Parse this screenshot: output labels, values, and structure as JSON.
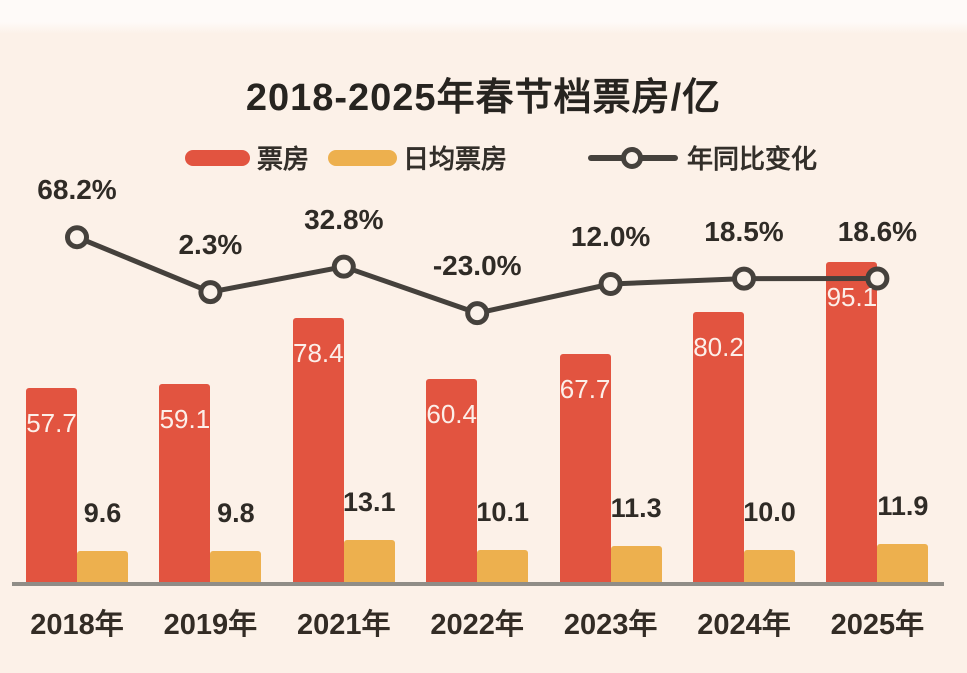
{
  "page": {
    "background_color": "#fcf1e8",
    "top_strip_color": "#fefaf8"
  },
  "title": "2018-2025年春节档票房/亿",
  "legend": [
    {
      "label": "票房",
      "type": "bar",
      "color": "#e25440"
    },
    {
      "label": "日均票房",
      "type": "bar",
      "color": "#edb04e"
    },
    {
      "label": "年同比变化",
      "type": "line",
      "color": "#45413c"
    }
  ],
  "chart_data": {
    "type": "bar",
    "subtype": "combo-bar-line",
    "title": "2018-2025年春节档票房/亿",
    "unit": "亿",
    "categories": [
      "2018年",
      "2019年",
      "2021年",
      "2022年",
      "2023年",
      "2024年",
      "2025年"
    ],
    "series": [
      {
        "name": "票房",
        "type": "bar",
        "color": "#e25440",
        "values": [
          57.7,
          59.1,
          78.4,
          60.4,
          67.7,
          80.2,
          95.1
        ],
        "labels": [
          "57.7",
          "59.1",
          "78.4",
          "60.4",
          "67.7",
          "80.2",
          "95.1"
        ]
      },
      {
        "name": "日均票房",
        "type": "bar",
        "color": "#edb04e",
        "values": [
          9.6,
          9.8,
          13.1,
          10.1,
          11.3,
          10.0,
          11.9
        ],
        "labels": [
          "9.6",
          "9.8",
          "13.1",
          "10.1",
          "11.3",
          "10.0",
          "11.9"
        ]
      },
      {
        "name": "年同比变化",
        "type": "line",
        "color": "#45413c",
        "marker_fill": "#fbf2ea",
        "values": [
          68.2,
          2.3,
          32.8,
          -23.0,
          12.0,
          18.5,
          18.6
        ],
        "labels": [
          "68.2%",
          "2.3%",
          "32.8%",
          "-23.0%",
          "12.0%",
          "18.5%",
          "18.6%"
        ]
      }
    ],
    "grid": false,
    "legend_position": "top",
    "value_labels_visible": true,
    "baseline_color": "#908d87"
  }
}
